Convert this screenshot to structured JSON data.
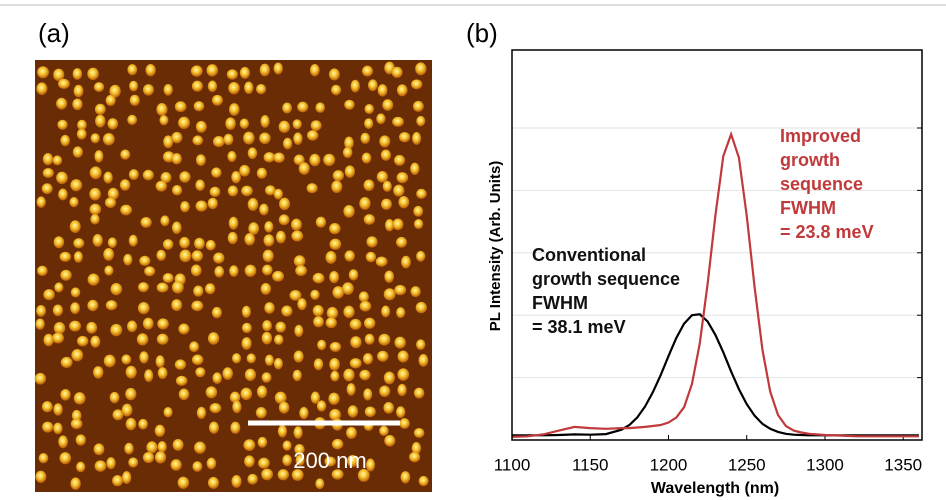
{
  "panels": {
    "a": {
      "label": "(a)",
      "scale_bar": "200 nm"
    },
    "b": {
      "label": "(b)"
    }
  },
  "chart_data": {
    "type": "line",
    "xlabel": "Wavelength (nm)",
    "ylabel": "PL Intensity (Arb. Units)",
    "x": [
      1100,
      1110,
      1120,
      1130,
      1140,
      1150,
      1160,
      1170,
      1175,
      1180,
      1185,
      1190,
      1195,
      1200,
      1205,
      1210,
      1215,
      1220,
      1225,
      1230,
      1235,
      1240,
      1245,
      1250,
      1255,
      1260,
      1265,
      1270,
      1275,
      1280,
      1285,
      1290,
      1300,
      1310,
      1320,
      1330,
      1340,
      1350,
      1360
    ],
    "series": [
      {
        "color": "#000000",
        "values": [
          0.015,
          0.015,
          0.015,
          0.016,
          0.018,
          0.017,
          0.019,
          0.033,
          0.048,
          0.072,
          0.107,
          0.153,
          0.208,
          0.269,
          0.327,
          0.373,
          0.4,
          0.403,
          0.38,
          0.337,
          0.281,
          0.22,
          0.163,
          0.115,
          0.078,
          0.052,
          0.036,
          0.026,
          0.02,
          0.017,
          0.016,
          0.015,
          0.015,
          0.015,
          0.015,
          0.015,
          0.015,
          0.015,
          0.015
        ]
      },
      {
        "color": "#c0393b",
        "values": [
          0.01,
          0.012,
          0.018,
          0.03,
          0.042,
          0.038,
          0.036,
          0.038,
          0.038,
          0.04,
          0.042,
          0.045,
          0.048,
          0.056,
          0.072,
          0.105,
          0.18,
          0.31,
          0.5,
          0.72,
          0.91,
          0.98,
          0.905,
          0.72,
          0.49,
          0.29,
          0.155,
          0.08,
          0.045,
          0.03,
          0.024,
          0.02,
          0.016,
          0.014,
          0.012,
          0.012,
          0.012,
          0.012,
          0.012
        ]
      }
    ],
    "annotations": [
      {
        "lines": [
          "Conventional",
          "growth sequence",
          "FWHM",
          "= 38.1 meV"
        ],
        "color": "#111111"
      },
      {
        "lines": [
          "Improved",
          "growth",
          "sequence",
          "FWHM",
          "= 23.8 meV"
        ],
        "color": "#c0393b"
      }
    ],
    "xlim": [
      1100,
      1362
    ],
    "xticks": [
      1100,
      1150,
      1200,
      1250,
      1300,
      1350
    ],
    "ylim": [
      0,
      1.25
    ],
    "yticks": [
      0.2,
      0.4,
      0.6,
      0.8,
      1.0
    ],
    "grid": true
  }
}
